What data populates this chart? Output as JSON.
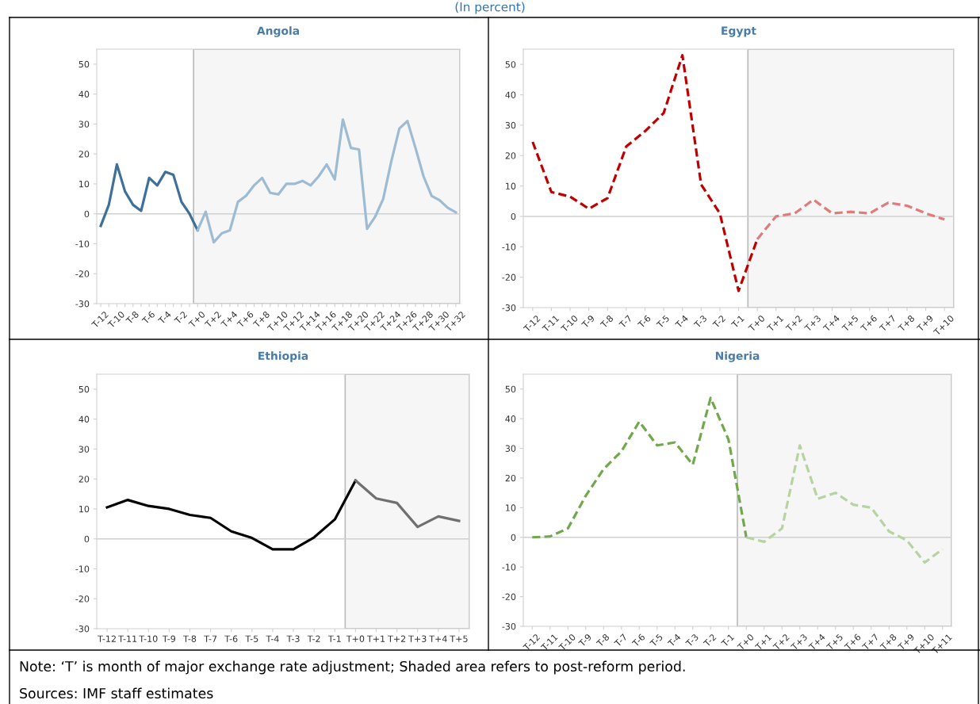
{
  "chart_data": [
    {
      "type": "line",
      "title": "Angola",
      "subtitle": "(In percent)",
      "categories": [
        "T-12",
        null,
        "T-10",
        null,
        "T-8",
        null,
        "T-6",
        null,
        "T-4",
        null,
        "T-2",
        null,
        "T+0",
        null,
        "T+2",
        null,
        "T+4",
        null,
        "T+6",
        null,
        "T+8",
        null,
        "T+10",
        null,
        "T+12",
        null,
        "T+14",
        null,
        "T+16",
        null,
        "T+18",
        null,
        "T+20",
        null,
        "T+22",
        null,
        "T+24",
        null,
        "T+26",
        null,
        "T+28",
        null,
        "T+30",
        null,
        "T+32"
      ],
      "series": [
        {
          "color": "#3e7099",
          "values": [
            -4,
            3,
            16.5,
            7.5,
            3,
            1,
            12,
            9.5,
            14,
            13,
            4,
            0,
            -5.5,
            null,
            null,
            null,
            null,
            null,
            null,
            null,
            null,
            null,
            null,
            null,
            null,
            null,
            null,
            null,
            null,
            null,
            null,
            null,
            null,
            null,
            null,
            null,
            null,
            null,
            null,
            null,
            null,
            null,
            null,
            null,
            null
          ]
        },
        {
          "color": "#9dbbd2",
          "values": [
            null,
            null,
            null,
            null,
            null,
            null,
            null,
            null,
            null,
            null,
            null,
            null,
            -5.5,
            0.7,
            -9.5,
            -6.5,
            -5.5,
            4,
            6,
            9.5,
            12,
            7,
            6.5,
            10,
            10,
            11,
            9.5,
            12.5,
            16.5,
            11.5,
            31.5,
            22,
            21.5,
            -5,
            -1,
            5,
            17.5,
            28.5,
            31,
            22,
            12.5,
            6,
            4.5,
            2,
            0.5
          ]
        }
      ],
      "ylim": [
        -30,
        55
      ],
      "yticks": [
        -30,
        -20,
        -10,
        0,
        10,
        20,
        30,
        40,
        50
      ],
      "grid": false,
      "line_style": "solid",
      "ref_lines": [
        {
          "axis": "y",
          "value": 0,
          "color": "#d0d0d0"
        }
      ],
      "bands": [
        {
          "axis": "x",
          "from": "T+0",
          "to": "T+32",
          "color": "#f6f6f6"
        }
      ]
    },
    {
      "type": "line",
      "title": "Egypt",
      "categories": [
        "T-12",
        "T-11",
        "T-10",
        "T-9",
        "T-8",
        "T-7",
        "T-6",
        "T-5",
        "T-4",
        "T-3",
        "T-2",
        "T-1",
        "T+0",
        "T+1",
        "T+2",
        "T+3",
        "T+4",
        "T+5",
        "T+6",
        "T+7",
        "T+8",
        "T+9",
        "T+10"
      ],
      "series": [
        {
          "color": "#c00000",
          "values": [
            24.5,
            8,
            6.5,
            2.5,
            6,
            23,
            28,
            34,
            53,
            10.5,
            1,
            -24.5,
            -7.5,
            null,
            null,
            null,
            null,
            null,
            null,
            null,
            null,
            null,
            null
          ]
        },
        {
          "color": "#e07b7b",
          "values": [
            null,
            null,
            null,
            null,
            null,
            null,
            null,
            null,
            null,
            null,
            null,
            null,
            -7.5,
            0,
            1,
            5.5,
            1,
            1.5,
            1,
            4.5,
            3.5,
            1,
            -1
          ]
        }
      ],
      "ylim": [
        -30,
        55
      ],
      "yticks": [
        -30,
        -20,
        -10,
        0,
        10,
        20,
        30,
        40,
        50
      ],
      "grid": false,
      "line_style": "dashed",
      "ref_lines": [
        {
          "axis": "y",
          "value": 0,
          "color": "#d0d0d0"
        }
      ],
      "bands": [
        {
          "axis": "x",
          "from": "T+0",
          "to": "T+10",
          "color": "#f6f6f6"
        }
      ]
    },
    {
      "type": "line",
      "title": "Ethiopia",
      "categories": [
        "T-12",
        "T-11",
        "T-10",
        "T-9",
        "T-8",
        "T-7",
        "T-6",
        "T-5",
        "T-4",
        "T-3",
        "T-2",
        "T-1",
        "T+0",
        "T+1",
        "T+2",
        "T+3",
        "T+4",
        "T+5"
      ],
      "series": [
        {
          "color": "#000000",
          "values": [
            10.5,
            13,
            11,
            10,
            8,
            7,
            2.5,
            0.3,
            -3.5,
            -3.5,
            0.5,
            6.5,
            19.5,
            null,
            null,
            null,
            null,
            null
          ]
        },
        {
          "color": "#707070",
          "values": [
            null,
            null,
            null,
            null,
            null,
            null,
            null,
            null,
            null,
            null,
            null,
            null,
            19.5,
            13.5,
            12,
            4,
            7.5,
            6
          ]
        }
      ],
      "ylim": [
        -30,
        55
      ],
      "yticks": [
        -30,
        -20,
        -10,
        0,
        10,
        20,
        30,
        40,
        50
      ],
      "grid": false,
      "line_style": "solid",
      "ref_lines": [
        {
          "axis": "y",
          "value": 0,
          "color": "#d0d0d0"
        }
      ],
      "bands": [
        {
          "axis": "x",
          "from": "T+0",
          "to": "T+5",
          "color": "#f6f6f6"
        }
      ]
    },
    {
      "type": "line",
      "title": "Nigeria",
      "categories": [
        "T-12",
        "T-11",
        "T-10",
        "T-9",
        "T-8",
        "T-7",
        "T-6",
        "T-5",
        "T-4",
        "T-3",
        "T-2",
        "T-1",
        "T+0",
        "T+1",
        "T+2",
        "T+3",
        "T+4",
        "T+5",
        "T+6",
        "T+7",
        "T+8",
        "T+9",
        "T+10",
        "T+11"
      ],
      "series": [
        {
          "color": "#70a84c",
          "values": [
            0,
            0.3,
            3,
            14,
            23,
            29,
            39,
            31,
            32,
            24.5,
            47,
            33,
            0,
            null,
            null,
            null,
            null,
            null,
            null,
            null,
            null,
            null,
            null,
            null
          ]
        },
        {
          "color": "#b6d4a2",
          "values": [
            null,
            null,
            null,
            null,
            null,
            null,
            null,
            null,
            null,
            null,
            null,
            null,
            0,
            -1.5,
            3,
            31,
            13,
            15,
            11,
            10,
            2,
            -1,
            -8.5,
            -4
          ]
        }
      ],
      "ylim": [
        -30,
        55
      ],
      "yticks": [
        -30,
        -20,
        -10,
        0,
        10,
        20,
        30,
        40,
        50
      ],
      "grid": false,
      "line_style": "dashed",
      "ref_lines": [
        {
          "axis": "y",
          "value": 0,
          "color": "#d0d0d0"
        }
      ],
      "bands": [
        {
          "axis": "x",
          "from": "T+0",
          "to": "T+11",
          "color": "#f6f6f6"
        }
      ],
      "annotations": [
        "Note: ‘T’ is month of major exchange rate adjustment; Shaded area refers to post-reform period.",
        "Sources: IMF staff estimates"
      ]
    }
  ]
}
